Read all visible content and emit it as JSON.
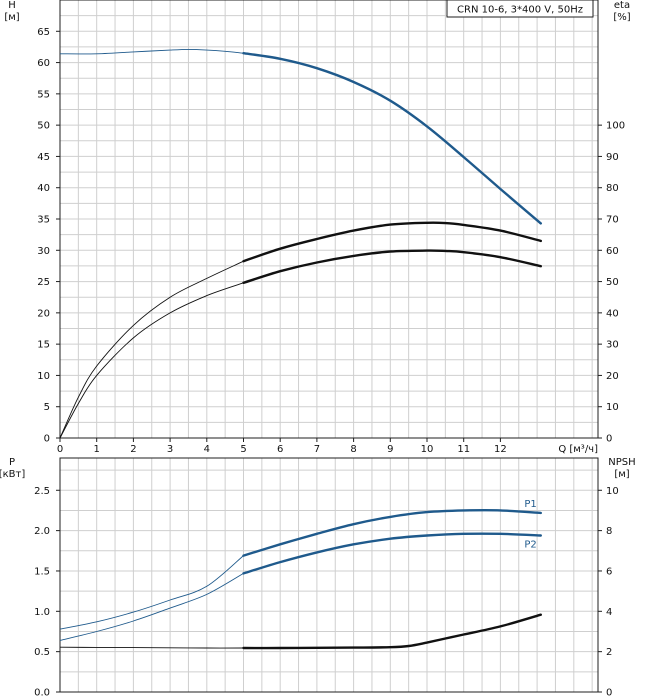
{
  "chart_data": [
    {
      "type": "line",
      "title": "CRN 10-6, 3*400 V, 50Hz",
      "xlabel": "Q [м³/ч]",
      "x_ticks": [
        0,
        1,
        2,
        3,
        4,
        5,
        6,
        7,
        8,
        9,
        10,
        11,
        12
      ],
      "xlim": [
        0,
        13.2
      ],
      "y_left": {
        "label": "H",
        "unit": "[м]",
        "ticks": [
          0,
          5,
          10,
          15,
          20,
          25,
          30,
          35,
          40,
          45,
          50,
          55,
          60,
          65
        ],
        "range": [
          0,
          70
        ]
      },
      "y_right": {
        "label": "eta",
        "unit": "[%]",
        "ticks": [
          0,
          10,
          20,
          30,
          40,
          50,
          60,
          70,
          80,
          90,
          100
        ],
        "range": [
          0,
          140
        ]
      },
      "grid": true,
      "series": [
        {
          "color": "#1f5a8c",
          "axis": "left",
          "x": [
            0,
            1,
            2,
            3,
            3.5,
            4,
            4.5,
            5,
            6,
            7,
            8,
            9,
            10,
            11,
            12,
            13.1
          ],
          "y": [
            61.4,
            61.4,
            61.7,
            62.0,
            62.1,
            62.0,
            61.8,
            61.5,
            60.6,
            59.1,
            56.9,
            53.9,
            49.8,
            44.9,
            39.8,
            34.3
          ]
        },
        {
          "color": "#111111",
          "axis": "right",
          "x": [
            0,
            0.5,
            1,
            2,
            3,
            4,
            5,
            6,
            7,
            8,
            9,
            10,
            10.5,
            11,
            12,
            13.1
          ],
          "y": [
            0,
            13,
            23,
            36,
            45,
            51,
            56.5,
            60.5,
            63.6,
            66.3,
            68.2,
            68.8,
            68.7,
            68.1,
            66.3,
            63.0
          ]
        },
        {
          "color": "#111111",
          "axis": "right",
          "x": [
            0,
            0.5,
            1,
            2,
            3,
            4,
            5,
            6,
            7,
            8,
            9,
            10,
            10.5,
            11,
            12,
            13.1
          ],
          "y": [
            0,
            11,
            20,
            32,
            40,
            45.5,
            49.6,
            53.3,
            56.1,
            58.2,
            59.6,
            59.9,
            59.8,
            59.4,
            57.8,
            54.9
          ]
        }
      ]
    },
    {
      "type": "line",
      "xlim": [
        0,
        13.2
      ],
      "y_left": {
        "label": "P",
        "unit": "[кВт]",
        "ticks": [
          "0.0",
          "0.5",
          "1.0",
          "1.5",
          "2.0",
          "2.5"
        ],
        "range": [
          0,
          2.9
        ]
      },
      "y_right": {
        "label": "NPSH",
        "unit": "[м]",
        "ticks": [
          0,
          2,
          4,
          6,
          8,
          10
        ],
        "range": [
          0,
          11.6
        ]
      },
      "grid": true,
      "series": [
        {
          "name": "P1",
          "color": "#1f5a8c",
          "axis": "left",
          "x": [
            0,
            1,
            2,
            3,
            4,
            5,
            6,
            7,
            8,
            9,
            10,
            11,
            12,
            13.1
          ],
          "y": [
            0.78,
            0.87,
            0.99,
            1.14,
            1.31,
            1.69,
            1.83,
            1.96,
            2.08,
            2.17,
            2.23,
            2.25,
            2.25,
            2.22
          ]
        },
        {
          "name": "P2",
          "color": "#1f5a8c",
          "axis": "left",
          "x": [
            0,
            1,
            2,
            3,
            4,
            5,
            6,
            7,
            8,
            9,
            10,
            11,
            12,
            13.1
          ],
          "y": [
            0.64,
            0.75,
            0.88,
            1.04,
            1.21,
            1.47,
            1.61,
            1.73,
            1.83,
            1.9,
            1.94,
            1.96,
            1.96,
            1.94
          ]
        },
        {
          "color": "#111111",
          "axis": "right",
          "x": [
            0,
            1,
            2,
            3,
            4,
            5,
            6,
            7,
            8,
            9,
            9.5,
            10,
            10.5,
            11,
            12,
            13.1
          ],
          "y": [
            2.22,
            2.21,
            2.2,
            2.19,
            2.18,
            2.18,
            2.18,
            2.19,
            2.2,
            2.22,
            2.28,
            2.45,
            2.65,
            2.85,
            3.25,
            3.83
          ]
        }
      ]
    }
  ]
}
